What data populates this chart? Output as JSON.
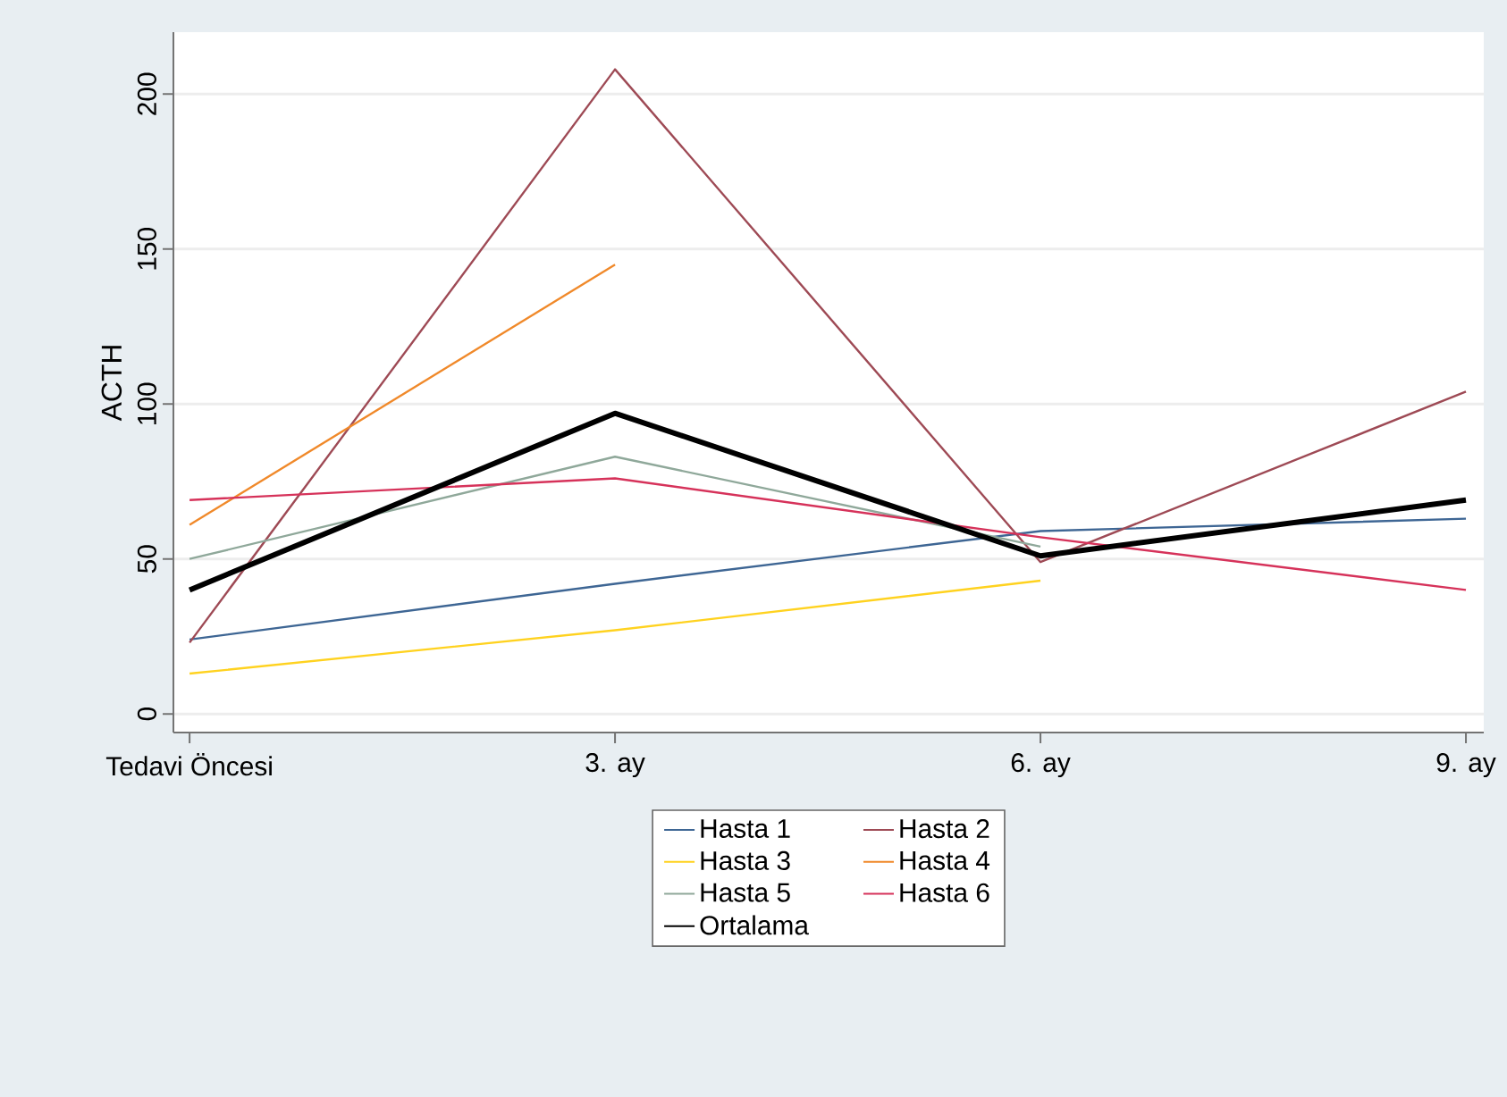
{
  "chart_data": {
    "type": "line",
    "ylabel": "ACTH",
    "categories": [
      "Tedavi Öncesi",
      "3. ay",
      "6. ay",
      "9. ay"
    ],
    "series": [
      {
        "name": "Hasta 1",
        "color": "#3e6694",
        "values": [
          24,
          42,
          59,
          63
        ]
      },
      {
        "name": "Hasta 2",
        "color": "#9e4a55",
        "values": [
          23,
          208,
          49,
          104
        ]
      },
      {
        "name": "Hasta 3",
        "color": "#ffd21f",
        "values": [
          13,
          27,
          43,
          null
        ]
      },
      {
        "name": "Hasta 4",
        "color": "#f0892a",
        "values": [
          61,
          145,
          null,
          null
        ]
      },
      {
        "name": "Hasta 5",
        "color": "#8fa89a",
        "values": [
          50,
          83,
          54,
          null
        ]
      },
      {
        "name": "Hasta 6",
        "color": "#d6325a",
        "values": [
          69,
          76,
          57,
          40
        ]
      },
      {
        "name": "Ortalama",
        "color": "#000000",
        "values": [
          40,
          97,
          51,
          69
        ]
      }
    ],
    "ylim": [
      -6,
      220
    ],
    "yticks": [
      0,
      50,
      100,
      150,
      200
    ],
    "grid": "y",
    "legend": "bottom",
    "marker": "none",
    "line_style": "solid"
  }
}
